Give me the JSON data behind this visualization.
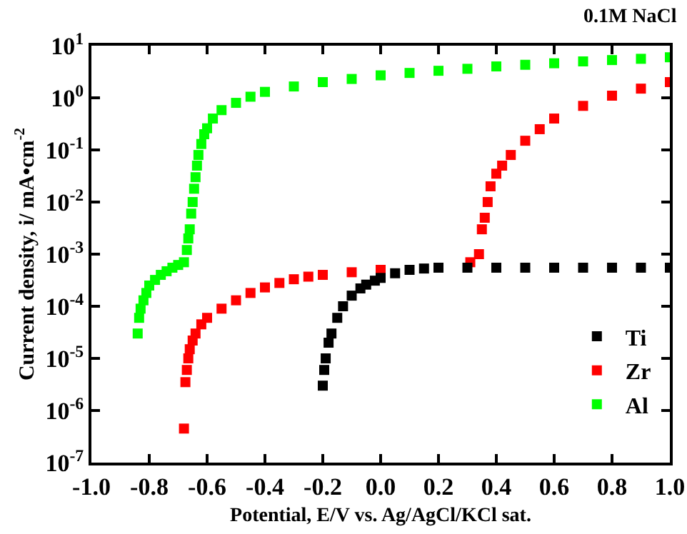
{
  "chart_data": {
    "type": "scatter",
    "title": "0.1M NaCl",
    "xlabel": "Potential, E/V vs. Ag/AgCl/KCl sat.",
    "ylabel": "Current density, i/ mA•cm$^{-2}$",
    "log": "y",
    "marker": "square",
    "legend": "bottom right",
    "grid": false,
    "xlim": [
      -1.0,
      1.0
    ],
    "xticks": [
      {
        "value": -1,
        "label": "-1.0"
      },
      -0.8,
      -0.6,
      -0.4,
      -0.2,
      {
        "value": 0,
        "label": "0.0"
      },
      0.2,
      0.4,
      0.6,
      0.8,
      {
        "value": 1,
        "label": "1.0"
      }
    ],
    "ylim": [
      1e-07,
      10
    ],
    "yticks": [
      {
        "value": 1e-07,
        "label": "10$^{-7}$"
      },
      {
        "value": 1e-06,
        "label": "10$^{-6}$"
      },
      {
        "value": 1e-05,
        "label": "10$^{-5}$"
      },
      {
        "value": 0.0001,
        "label": "10$^{-4}$"
      },
      {
        "value": 0.001,
        "label": "10$^{-3}$"
      },
      {
        "value": 0.01,
        "label": "10$^{-2}$"
      },
      {
        "value": 0.1,
        "label": "10$^{-1}$"
      },
      {
        "value": 1,
        "label": "10$^{0}$"
      },
      {
        "value": 10,
        "label": "10$^{1}$"
      }
    ],
    "series": [
      {
        "name": "Ti",
        "color": "#000000",
        "x": [
          -0.2,
          -0.195,
          -0.19,
          -0.18,
          -0.17,
          -0.15,
          -0.13,
          -0.1,
          -0.07,
          -0.05,
          -0.02,
          0.0,
          0.05,
          0.1,
          0.15,
          0.2,
          0.3,
          0.4,
          0.5,
          0.6,
          0.7,
          0.8,
          0.9,
          1.0
        ],
        "values": [
          3e-06,
          6e-06,
          1e-05,
          2e-05,
          3e-05,
          6e-05,
          0.0001,
          0.00016,
          0.00022,
          0.00026,
          0.00031,
          0.00035,
          0.00043,
          0.0005,
          0.00053,
          0.00055,
          0.00055,
          0.00055,
          0.00055,
          0.00055,
          0.00055,
          0.00055,
          0.00055,
          0.00055
        ]
      },
      {
        "name": "Zr",
        "color": "#ff0000",
        "x": [
          -0.68,
          -0.675,
          -0.67,
          -0.665,
          -0.66,
          -0.65,
          -0.64,
          -0.62,
          -0.6,
          -0.55,
          -0.5,
          -0.45,
          -0.4,
          -0.35,
          -0.3,
          -0.25,
          -0.2,
          -0.1,
          0.0,
          0.31,
          0.34,
          0.35,
          0.36,
          0.37,
          0.38,
          0.4,
          0.42,
          0.45,
          0.5,
          0.55,
          0.6,
          0.7,
          0.8,
          0.9,
          1.0
        ],
        "values": [
          4.5e-07,
          3.5e-06,
          6e-06,
          1e-05,
          1.5e-05,
          2.2e-05,
          3e-05,
          4.5e-05,
          6e-05,
          9e-05,
          0.00013,
          0.00018,
          0.00023,
          0.00028,
          0.00033,
          0.00037,
          0.0004,
          0.00045,
          0.0005,
          0.0007,
          0.001,
          0.003,
          0.005,
          0.01,
          0.02,
          0.035,
          0.05,
          0.08,
          0.15,
          0.25,
          0.4,
          0.7,
          1.1,
          1.5,
          2
        ]
      },
      {
        "name": "Al",
        "color": "#00ff00",
        "x": [
          -0.84,
          -0.835,
          -0.83,
          -0.82,
          -0.81,
          -0.8,
          -0.78,
          -0.76,
          -0.74,
          -0.72,
          -0.7,
          -0.68,
          -0.67,
          -0.665,
          -0.66,
          -0.655,
          -0.65,
          -0.645,
          -0.64,
          -0.635,
          -0.63,
          -0.62,
          -0.61,
          -0.6,
          -0.58,
          -0.55,
          -0.5,
          -0.45,
          -0.4,
          -0.3,
          -0.2,
          -0.1,
          0.0,
          0.1,
          0.2,
          0.3,
          0.4,
          0.5,
          0.6,
          0.7,
          0.8,
          0.9,
          1.0
        ],
        "values": [
          3e-05,
          6e-05,
          9e-05,
          0.00013,
          0.00018,
          0.00025,
          0.00032,
          0.0004,
          0.00047,
          0.00055,
          0.00062,
          0.0007,
          0.0012,
          0.002,
          0.003,
          0.006,
          0.01,
          0.018,
          0.03,
          0.05,
          0.08,
          0.13,
          0.2,
          0.26,
          0.4,
          0.58,
          0.8,
          1.05,
          1.3,
          1.65,
          2,
          2.3,
          2.7,
          3,
          3.3,
          3.6,
          4,
          4.3,
          4.6,
          5,
          5.3,
          5.6,
          6
        ]
      }
    ]
  }
}
